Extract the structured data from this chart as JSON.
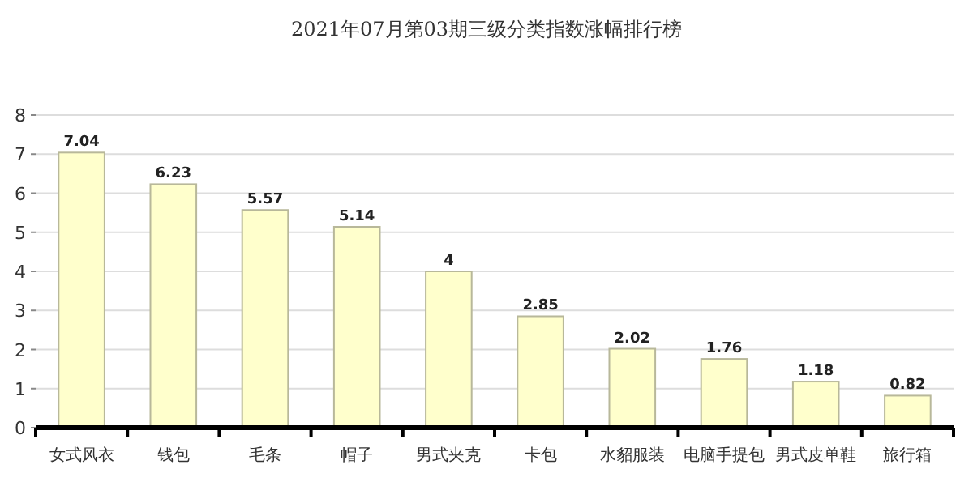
{
  "chart_data": {
    "type": "bar",
    "title": "2021年07月第03期三级分类指数涨幅排行榜",
    "categories": [
      "女式风衣",
      "钱包",
      "毛条",
      "帽子",
      "男式夹克",
      "卡包",
      "水貂服装",
      "电脑手提包",
      "男式皮单鞋",
      "旅行箱"
    ],
    "values": [
      7.04,
      6.23,
      5.57,
      5.14,
      4,
      2.85,
      2.02,
      1.76,
      1.18,
      0.82
    ],
    "color": "#ffffcc",
    "ylim": [
      0,
      8
    ],
    "yticks": [
      0,
      1,
      2,
      3,
      4,
      5,
      6,
      7,
      8
    ],
    "grid": "y",
    "data_labels": true
  }
}
